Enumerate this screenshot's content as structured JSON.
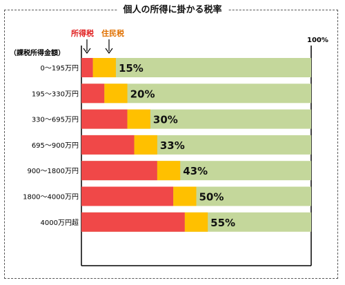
{
  "title": "個人の所得に掛かる税率",
  "colors": {
    "income": "#f04848",
    "resident": "#ffc000",
    "remainder": "#c4d79b",
    "income_label": "#e02020",
    "resident_label": "#e07000"
  },
  "chart_data": {
    "type": "bar",
    "orientation": "horizontal",
    "stacked": true,
    "y_axis_title": "（課税所得金額）",
    "max_label": "100%",
    "xlim": [
      0,
      100
    ],
    "categories": [
      "0～195万円",
      "195～330万円",
      "330～695万円",
      "695～900万円",
      "900～1800万円",
      "1800～4000万円",
      "4000万円超"
    ],
    "series": [
      {
        "name": "所得税",
        "values": [
          5,
          10,
          20,
          23,
          33,
          40,
          45
        ]
      },
      {
        "name": "住民税",
        "values": [
          10,
          10,
          10,
          10,
          10,
          10,
          10
        ]
      }
    ],
    "totals": [
      "15%",
      "20%",
      "30%",
      "33%",
      "43%",
      "50%",
      "55%"
    ],
    "grid": false,
    "legend": "top"
  }
}
